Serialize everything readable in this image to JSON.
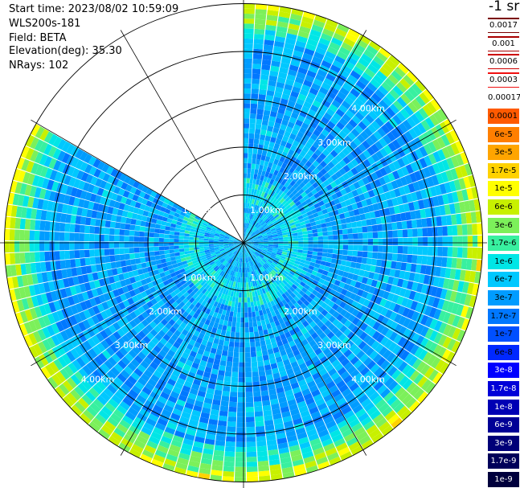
{
  "header": {
    "start_time": "Start time: 2023/08/02 10:59:09",
    "instrument": "WLS200s-181",
    "field": "Field: BETA",
    "elevation": "Elevation(deg): 35.30",
    "nrays": "NRays: 102"
  },
  "colorbar": {
    "unit": "-1 sr",
    "ticks": [
      "0.0017",
      "0.001",
      "0.0006",
      "0.0003",
      "0.00017",
      "0.0001",
      "6e-5",
      "3e-5",
      "1.7e-5",
      "1e-5",
      "6e-6",
      "3e-6",
      "1.7e-6",
      "1e-6",
      "6e-7",
      "3e-7",
      "1.7e-7",
      "1e-7",
      "6e-8",
      "3e-8",
      "1.7e-8",
      "1e-8",
      "6e-9",
      "3e-9",
      "1.7e-9",
      "1e-9"
    ],
    "colors": [
      "#7a0000",
      "#a80000",
      "#cc0000",
      "#f01010",
      "#ffffff",
      "#ff5a00",
      "#ff7f00",
      "#ffa500",
      "#ffd200",
      "#ffff00",
      "#c8f000",
      "#7cf05a",
      "#38f0a0",
      "#00e6e6",
      "#00c8ff",
      "#009cff",
      "#0078ff",
      "#0050ff",
      "#0028ff",
      "#0000ff",
      "#0000d8",
      "#0000b4",
      "#000096",
      "#000078",
      "#00005a",
      "#00003c"
    ]
  },
  "chart_data": {
    "type": "heatmap",
    "projection": "polar (PPI scan)",
    "field": "BETA",
    "elevation_deg": 35.3,
    "n_rays": 102,
    "range_ring_labels": [
      "1.00km",
      "2.00km",
      "3.00km",
      "4.00km"
    ],
    "range_rings_km": [
      1,
      2,
      3,
      4,
      5
    ],
    "max_range_km": 5.0,
    "gap_azimuth_deg": [
      300,
      360
    ],
    "color_scale": "log",
    "value_range": [
      1e-09,
      0.0017
    ],
    "bands": [
      {
        "range_km": [
          0,
          0.8
        ],
        "typical_beta": "1e-6 to 3e-6"
      },
      {
        "range_km": [
          0.8,
          1.4
        ],
        "typical_beta": "6e-7 to 1e-6"
      },
      {
        "range_km": [
          1.4,
          4.3
        ],
        "typical_beta": "3e-7 to 1e-6"
      },
      {
        "range_km": [
          4.3,
          5.0
        ],
        "typical_beta": "1e-6 to 1e-5"
      }
    ]
  }
}
